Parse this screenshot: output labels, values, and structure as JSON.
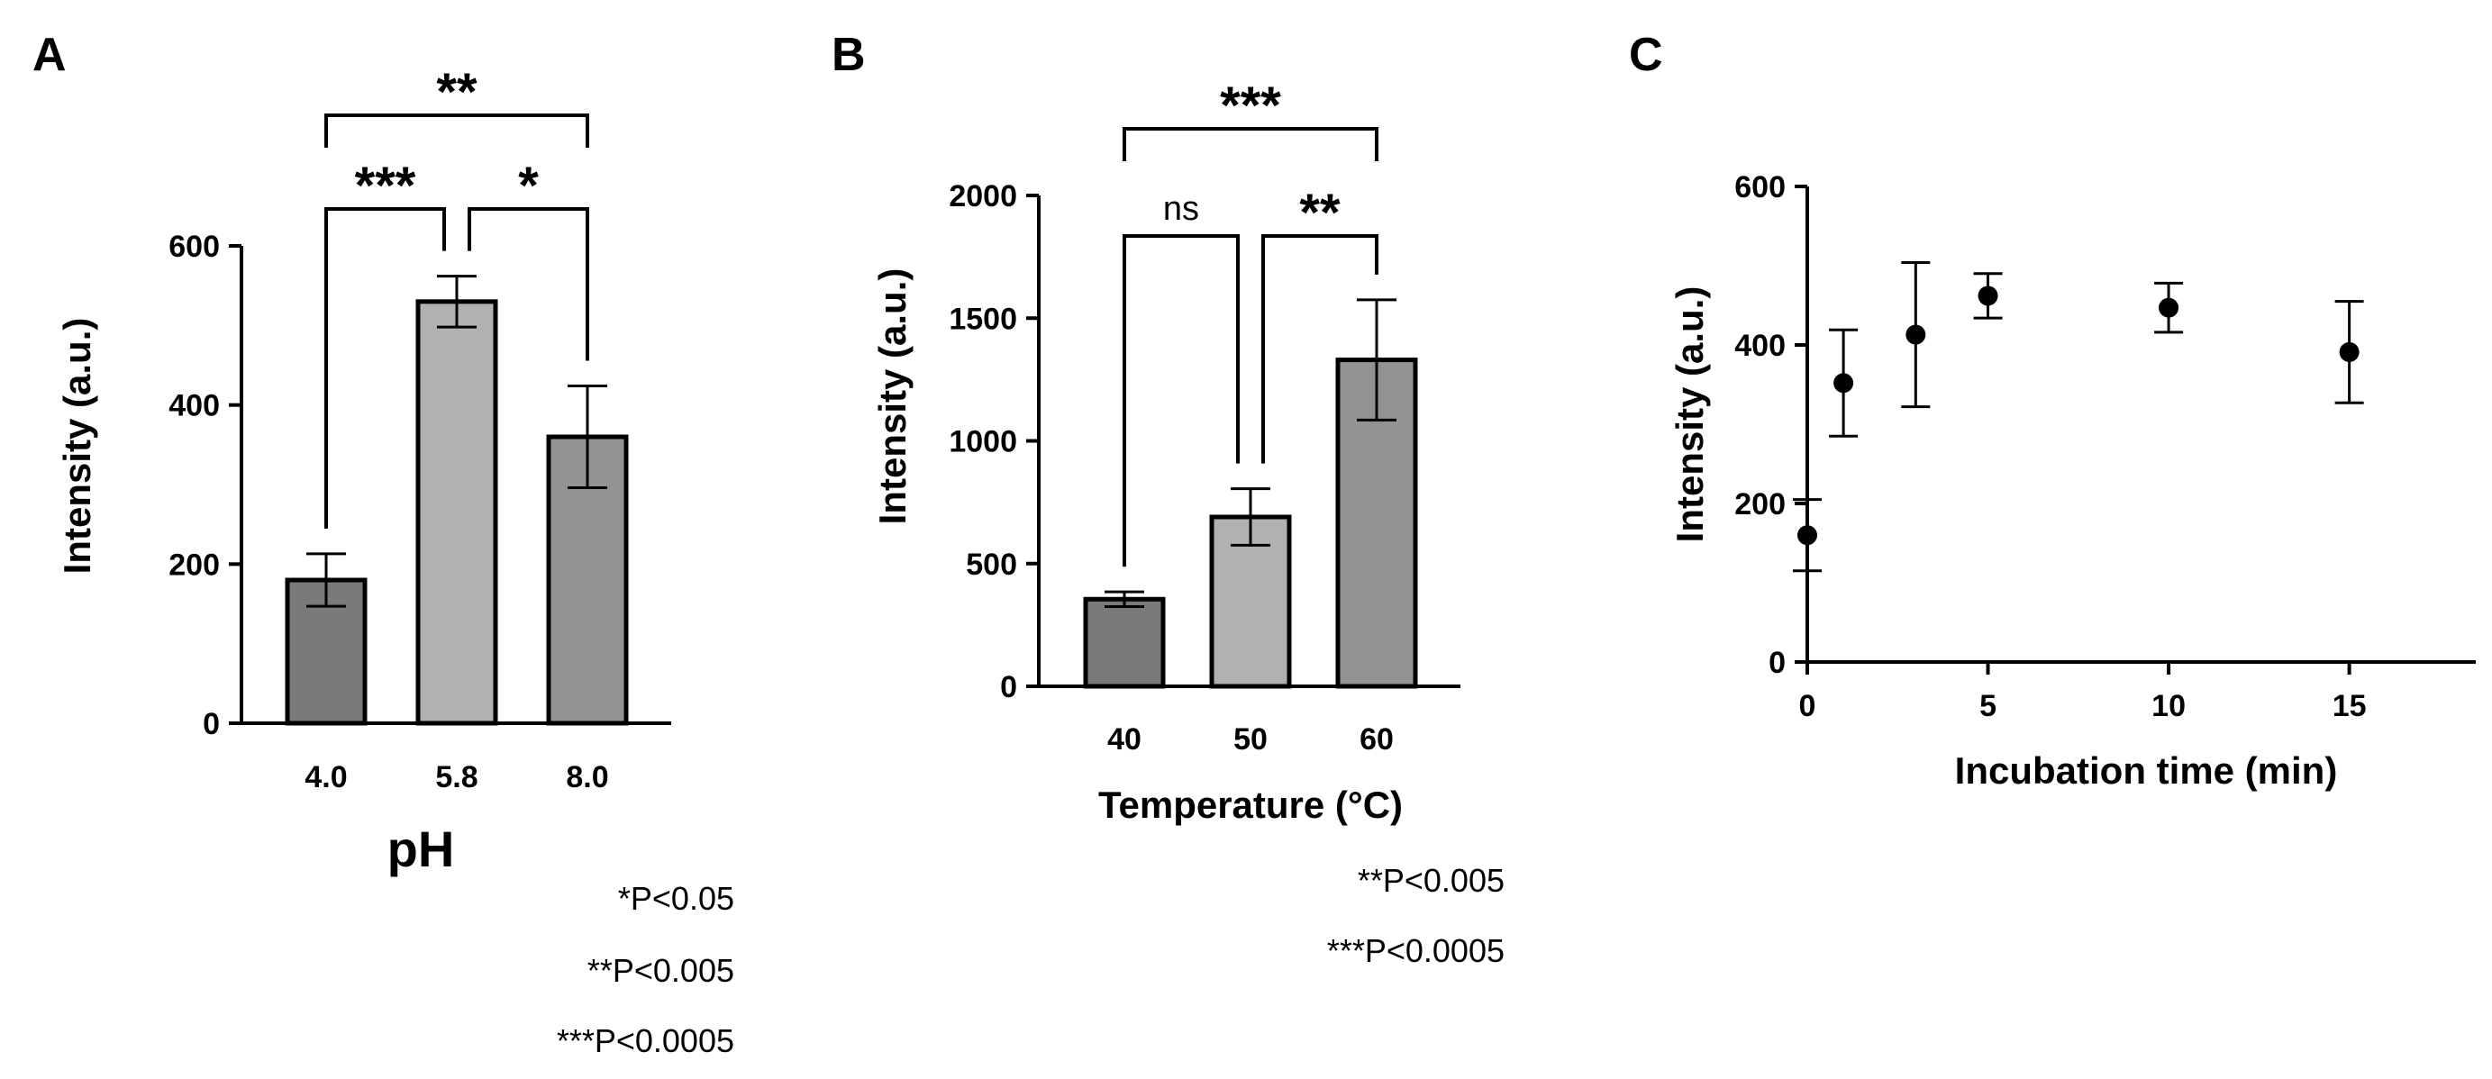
{
  "panels": {
    "A": {
      "label": "A",
      "type": "bar",
      "xlabel": "pH",
      "ylabel": "Intensity (a.u.)",
      "ylim": [
        0,
        600
      ],
      "yticks": [
        0,
        200,
        400,
        600
      ],
      "categories": [
        "4.0",
        "5.8",
        "8.0"
      ],
      "values": [
        180,
        530,
        360
      ],
      "errors": [
        33,
        32,
        64
      ],
      "colors": [
        "#7a7a7a",
        "#b1b1b1",
        "#939393"
      ],
      "comparisons": [
        {
          "from": 0,
          "to": 1,
          "label": "***",
          "level": 1
        },
        {
          "from": 1,
          "to": 2,
          "label": "*",
          "level": 1
        },
        {
          "from": 0,
          "to": 2,
          "label": "**",
          "level": 2
        }
      ],
      "notes": [
        "*P<0.05",
        "**P<0.005",
        "***P<0.0005"
      ]
    },
    "B": {
      "label": "B",
      "type": "bar",
      "xlabel": "Temperature (°C)",
      "ylabel": "Intensity (a.u.)",
      "ylim": [
        0,
        2000
      ],
      "yticks": [
        0,
        500,
        1000,
        1500,
        2000
      ],
      "categories": [
        "40",
        "50",
        "60"
      ],
      "values": [
        355,
        690,
        1330
      ],
      "errors": [
        30,
        115,
        245
      ],
      "colors": [
        "#7a7a7a",
        "#b1b1b1",
        "#939393"
      ],
      "comparisons": [
        {
          "from": 0,
          "to": 1,
          "label": "ns",
          "level": 1
        },
        {
          "from": 1,
          "to": 2,
          "label": "**",
          "level": 1
        },
        {
          "from": 0,
          "to": 2,
          "label": "***",
          "level": 2
        }
      ],
      "notes": [
        "**P<0.005",
        "***P<0.0005"
      ]
    },
    "C": {
      "label": "C",
      "type": "scatter",
      "xlabel": "Incubation time (min)",
      "ylabel": "Intensity (a.u.)",
      "xlim": [
        0,
        18.5
      ],
      "ylim": [
        0,
        600
      ],
      "xticks": [
        0,
        5,
        10,
        15
      ],
      "yticks": [
        0,
        200,
        400,
        600
      ],
      "points": [
        {
          "x": 0,
          "y": 160,
          "err": 45
        },
        {
          "x": 1,
          "y": 352,
          "err": 67
        },
        {
          "x": 3,
          "y": 413,
          "err": 91
        },
        {
          "x": 5,
          "y": 462,
          "err": 28
        },
        {
          "x": 10,
          "y": 447,
          "err": 31
        },
        {
          "x": 15,
          "y": 391,
          "err": 64
        }
      ]
    }
  }
}
